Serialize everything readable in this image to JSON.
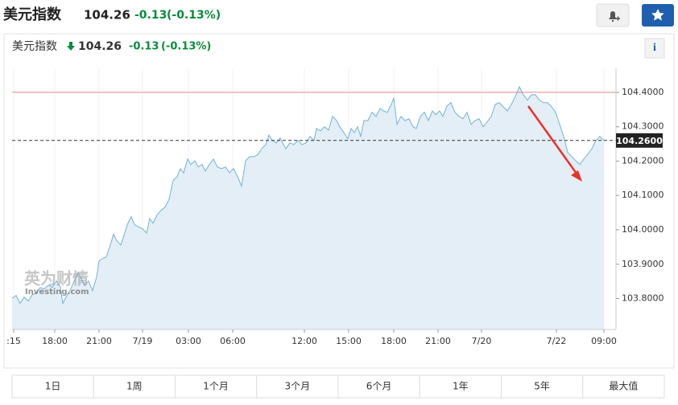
{
  "header": {
    "title": "美元指数",
    "price": "104.26",
    "change": "-0.13",
    "change_pct": "(-0.13%)"
  },
  "chart_header": {
    "title": "美元指数",
    "price": "104.26",
    "change": "-0.13",
    "change_pct": "(-0.13%)",
    "info": "i"
  },
  "watermark": {
    "brand": "英为财情",
    "site": "Investing.com"
  },
  "range_buttons": [
    "1日",
    "1周",
    "1个月",
    "3个月",
    "6个月",
    "1年",
    "5年",
    "最大值"
  ],
  "chart_data": {
    "type": "area",
    "color": "#6fb3d8",
    "fill": "#e4eef6",
    "x": [
      0,
      5,
      10,
      15,
      20,
      25,
      30,
      35,
      40,
      45,
      50,
      55,
      60,
      63,
      67,
      73,
      77,
      82,
      85,
      90,
      95,
      100,
      105,
      108,
      112,
      117,
      122,
      126,
      130,
      135,
      140,
      143,
      148,
      152,
      157,
      162,
      167,
      171,
      175,
      180,
      185,
      190,
      195,
      200,
      205,
      209,
      213,
      218,
      222,
      227,
      231,
      236,
      240,
      245,
      250,
      255,
      260,
      265,
      270,
      275,
      280,
      285,
      290,
      295,
      300,
      305,
      310,
      315,
      319,
      323,
      328,
      333,
      337,
      340,
      345,
      350,
      355,
      360,
      365,
      370,
      375,
      378,
      383,
      388,
      393,
      398,
      403,
      407,
      412,
      417,
      421,
      425,
      429,
      433,
      437,
      442,
      447,
      452,
      457,
      461,
      466,
      471,
      474,
      478,
      483,
      488,
      493,
      498,
      502,
      507,
      512,
      517,
      522,
      526,
      531,
      535,
      540,
      545,
      550,
      555,
      560,
      565,
      570,
      575,
      580,
      585,
      590,
      595,
      600,
      605,
      610,
      615,
      620,
      625,
      630,
      635,
      640,
      645,
      650,
      655,
      660,
      665,
      670,
      675,
      680,
      685,
      690,
      695,
      700,
      705,
      710,
      715,
      720,
      725,
      730,
      735
    ],
    "values": [
      103.8,
      103.809,
      103.786,
      103.804,
      103.793,
      103.811,
      103.816,
      103.832,
      103.828,
      103.839,
      103.832,
      103.851,
      103.835,
      103.786,
      103.804,
      103.828,
      103.851,
      103.874,
      103.863,
      103.839,
      103.851,
      103.823,
      103.863,
      103.909,
      103.916,
      103.921,
      103.956,
      103.987,
      103.968,
      103.956,
      103.991,
      104.015,
      104.038,
      104.015,
      104.008,
      104.003,
      103.991,
      104.033,
      104.019,
      104.043,
      104.057,
      104.066,
      104.089,
      104.143,
      104.155,
      104.178,
      104.166,
      104.206,
      104.19,
      104.201,
      104.183,
      104.19,
      104.171,
      104.19,
      104.206,
      104.183,
      104.178,
      104.183,
      104.166,
      104.178,
      104.155,
      104.127,
      104.201,
      104.213,
      104.213,
      104.218,
      104.236,
      104.248,
      104.276,
      104.26,
      104.253,
      104.267,
      104.248,
      104.236,
      104.253,
      104.248,
      104.26,
      104.248,
      104.253,
      104.272,
      104.26,
      104.295,
      104.288,
      104.3,
      104.29,
      104.33,
      104.318,
      104.3,
      104.283,
      104.265,
      104.295,
      104.283,
      104.3,
      104.272,
      104.318,
      104.318,
      104.342,
      104.33,
      104.353,
      104.346,
      104.342,
      104.365,
      104.384,
      104.307,
      104.33,
      104.318,
      104.323,
      104.3,
      104.295,
      104.33,
      104.342,
      104.318,
      104.346,
      104.335,
      104.346,
      104.33,
      104.36,
      104.37,
      104.342,
      104.33,
      104.323,
      104.342,
      104.307,
      104.318,
      104.323,
      104.3,
      104.314,
      104.33,
      104.365,
      104.37,
      104.358,
      104.346,
      104.365,
      104.388,
      104.416,
      104.393,
      104.377,
      104.393,
      104.393,
      104.377,
      104.37,
      104.37,
      104.358,
      104.342,
      104.307,
      104.272,
      104.225,
      104.213,
      104.201,
      104.19,
      104.206,
      104.22,
      104.236,
      104.26,
      104.272,
      104.26
    ],
    "xlim": [
      0,
      750
    ],
    "ylim": [
      103.71,
      104.47
    ],
    "xticks": [
      {
        "value": 2,
        "label": ":15"
      },
      {
        "value": 53,
        "label": "18:00"
      },
      {
        "value": 108,
        "label": "21:00"
      },
      {
        "value": 162,
        "label": "7/19"
      },
      {
        "value": 219,
        "label": "03:00"
      },
      {
        "value": 274,
        "label": "06:00"
      },
      {
        "value": 363,
        "label": "12:00"
      },
      {
        "value": 418,
        "label": "15:00"
      },
      {
        "value": 474,
        "label": "18:00"
      },
      {
        "value": 529,
        "label": "21:00"
      },
      {
        "value": 583,
        "label": "7/20"
      },
      {
        "value": 676,
        "label": "7/22"
      },
      {
        "value": 735,
        "label": "09:00"
      }
    ],
    "yticks": [
      {
        "value": 104.4,
        "label": "104.4000"
      },
      {
        "value": 104.3,
        "label": "104.3000"
      },
      {
        "value": 104.2,
        "label": "104.2000"
      },
      {
        "value": 104.1,
        "label": "104.1000"
      },
      {
        "value": 104.0,
        "label": "104.0000"
      },
      {
        "value": 103.9,
        "label": "103.9000"
      },
      {
        "value": 103.8,
        "label": "103.8000"
      }
    ],
    "reference_line": {
      "value": 104.4,
      "color": "#e88080"
    },
    "current_line": {
      "value": 104.26,
      "label": "104.2600"
    },
    "grid": true
  }
}
